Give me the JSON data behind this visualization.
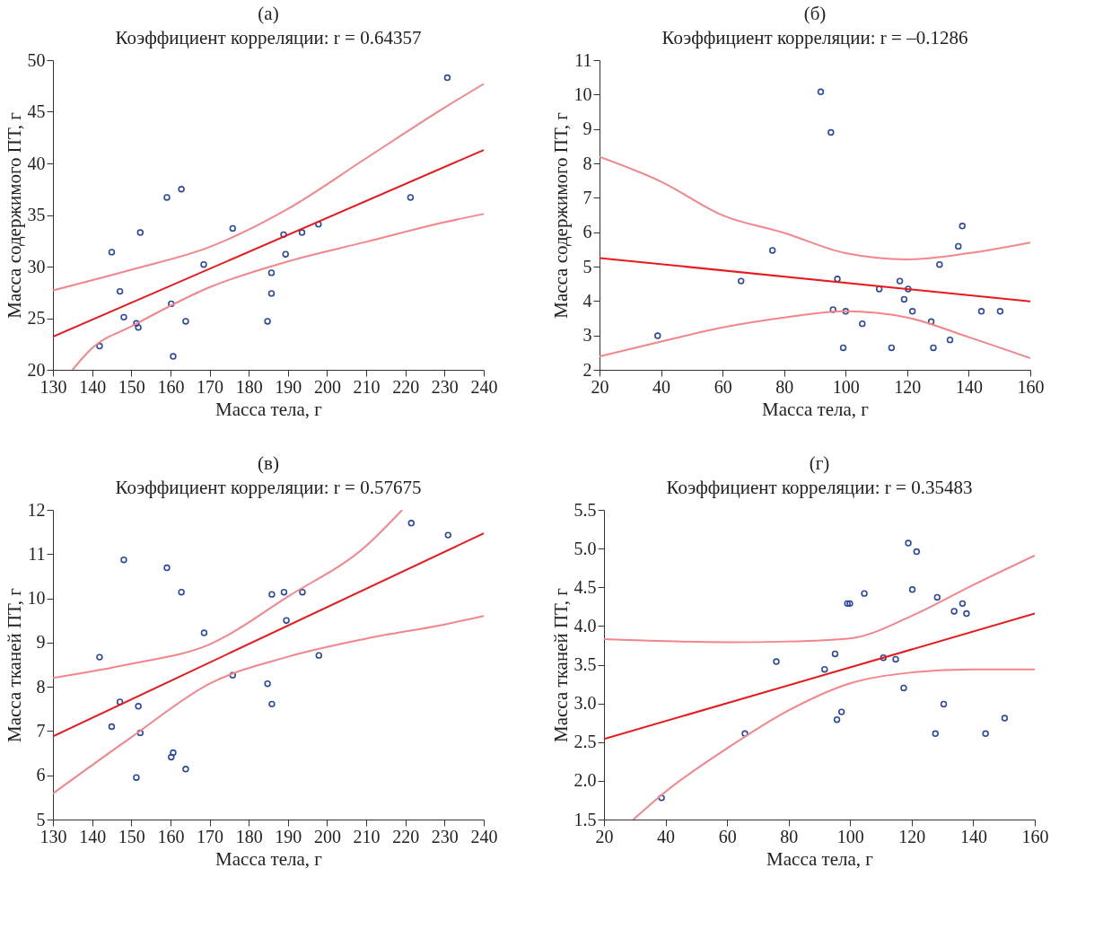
{
  "chart_data": [
    {
      "type": "scatter",
      "title": "(а)",
      "subtitle": "Коэффициент корреляции: r = 0.64357",
      "xlabel": "Масса тела, г",
      "ylabel": "Масса содержимого ПТ, г",
      "xlim": [
        130,
        240
      ],
      "xticks": [
        130,
        140,
        150,
        160,
        170,
        180,
        190,
        200,
        210,
        220,
        230,
        240
      ],
      "ylim": [
        20,
        50
      ],
      "yticks": [
        20,
        25,
        30,
        35,
        40,
        45,
        50
      ],
      "grid": false,
      "series": [
        {
          "type": "scatter",
          "marker": "circle",
          "color": "#2e4a9e",
          "x": [
            141.9,
            145.0,
            147.1,
            148.1,
            151.3,
            151.8,
            152.3,
            159.1,
            160.2,
            160.7,
            162.8,
            163.9,
            168.5,
            175.9,
            184.8,
            185.8,
            185.8,
            188.9,
            189.4,
            193.6,
            197.8,
            221.3,
            230.7
          ],
          "values": [
            22.3,
            31.4,
            27.6,
            25.1,
            24.5,
            24.1,
            33.3,
            36.7,
            26.4,
            21.3,
            37.5,
            24.7,
            30.2,
            33.7,
            24.7,
            29.4,
            27.4,
            33.1,
            31.2,
            33.3,
            34.1,
            36.7,
            48.3
          ]
        },
        {
          "type": "line",
          "color": "#e8191c",
          "x": [
            130,
            240
          ],
          "values": [
            23.2,
            41.3
          ]
        },
        {
          "type": "line",
          "color": "#f4858a",
          "x": [
            130,
            150,
            170,
            190,
            210,
            230,
            240
          ],
          "values": [
            27.7,
            29.7,
            31.9,
            35.6,
            40.5,
            45.4,
            47.7
          ]
        },
        {
          "type": "line",
          "color": "#f4858a",
          "x": [
            135,
            140,
            150,
            170,
            190,
            210,
            230,
            240
          ],
          "values": [
            20.0,
            22.1,
            24.2,
            28.0,
            30.5,
            32.4,
            34.3,
            35.1
          ]
        }
      ]
    },
    {
      "type": "scatter",
      "title": "(б)",
      "subtitle": "Коэффициент корреляции: r = –0.1286",
      "xlabel": "Масса тела, г",
      "ylabel": "Масса содержимого ПТ, г",
      "xlim": [
        20,
        160
      ],
      "xticks": [
        20,
        40,
        60,
        80,
        100,
        120,
        140,
        160
      ],
      "ylim": [
        2,
        11
      ],
      "yticks": [
        2,
        3,
        4,
        5,
        6,
        7,
        8,
        9,
        10,
        11
      ],
      "grid": false,
      "series": [
        {
          "type": "scatter",
          "marker": "circle",
          "color": "#2e4a9e",
          "x": [
            38.9,
            66.0,
            76.2,
            91.9,
            95.2,
            95.9,
            97.3,
            99.2,
            100.0,
            105.4,
            110.9,
            114.9,
            117.6,
            119.0,
            120.3,
            121.7,
            127.8,
            128.5,
            130.5,
            133.9,
            136.6,
            137.9,
            144.1,
            150.2
          ],
          "values": [
            2.99,
            4.58,
            5.47,
            10.08,
            8.9,
            3.75,
            4.64,
            2.64,
            3.7,
            3.34,
            4.35,
            2.64,
            4.58,
            4.05,
            4.35,
            3.7,
            3.4,
            2.64,
            5.06,
            2.87,
            5.59,
            6.18,
            3.7,
            3.7
          ]
        },
        {
          "type": "line",
          "color": "#e8191c",
          "x": [
            20,
            160
          ],
          "values": [
            5.25,
            3.99
          ]
        },
        {
          "type": "line",
          "color": "#f4858a",
          "x": [
            20,
            40,
            60,
            80,
            100,
            120,
            140,
            160
          ],
          "values": [
            8.19,
            7.47,
            6.49,
            5.98,
            5.39,
            5.21,
            5.39,
            5.7
          ]
        },
        {
          "type": "line",
          "color": "#f4858a",
          "x": [
            20,
            40,
            60,
            80,
            100,
            120,
            140,
            160
          ],
          "values": [
            2.39,
            2.82,
            3.23,
            3.52,
            3.7,
            3.52,
            2.95,
            2.34
          ]
        }
      ]
    },
    {
      "type": "scatter",
      "title": "(в)",
      "subtitle": "Коэффициент корреляции: r = 0.57675",
      "xlabel": "Масса тела, г",
      "ylabel": "Масса тканей ПТ, г",
      "xlim": [
        130,
        240
      ],
      "xticks": [
        130,
        140,
        150,
        160,
        170,
        180,
        190,
        200,
        210,
        220,
        230,
        240
      ],
      "ylim": [
        5,
        12
      ],
      "yticks": [
        5,
        6,
        7,
        8,
        9,
        10,
        11,
        12
      ],
      "grid": false,
      "series": [
        {
          "type": "scatter",
          "marker": "circle",
          "color": "#2e4a9e",
          "x": [
            141.9,
            145.0,
            147.1,
            148.1,
            151.3,
            151.8,
            152.3,
            159.1,
            160.2,
            160.7,
            162.8,
            163.9,
            168.6,
            175.9,
            184.8,
            185.9,
            185.9,
            189.0,
            189.6,
            193.7,
            197.9,
            221.5,
            230.9
          ],
          "values": [
            8.67,
            7.1,
            7.66,
            10.87,
            5.95,
            7.56,
            6.96,
            10.69,
            6.41,
            6.51,
            10.14,
            6.14,
            9.22,
            8.26,
            8.07,
            10.09,
            7.61,
            10.14,
            9.5,
            10.14,
            8.71,
            11.7,
            11.43
          ]
        },
        {
          "type": "line",
          "color": "#e8191c",
          "x": [
            130,
            240
          ],
          "values": [
            6.88,
            11.47
          ]
        },
        {
          "type": "line",
          "color": "#f4858a",
          "x": [
            130,
            150,
            170,
            190,
            210,
            219.2
          ],
          "values": [
            8.2,
            8.52,
            8.96,
            10.04,
            11.19,
            12.0
          ]
        },
        {
          "type": "line",
          "color": "#f4858a",
          "x": [
            130,
            150,
            170,
            190,
            210,
            230,
            240
          ],
          "values": [
            5.59,
            6.86,
            8.07,
            8.68,
            9.09,
            9.41,
            9.6
          ]
        }
      ]
    },
    {
      "type": "scatter",
      "title": "(г)",
      "subtitle": "Коэффициент корреляции: r = 0.35483",
      "xlabel": "Масса тела, г",
      "ylabel": "Масса тканей ПТ, г",
      "xlim": [
        20,
        160
      ],
      "xticks": [
        20,
        40,
        60,
        80,
        100,
        120,
        140,
        160
      ],
      "ylim": [
        1.5,
        5.5
      ],
      "yticks": [
        1.5,
        {
          "value": 2,
          "label": "2.0"
        },
        2.5,
        {
          "value": 3,
          "label": "3.0"
        },
        3.5,
        {
          "value": 4,
          "label": "4.0"
        },
        4.5,
        {
          "value": 5,
          "label": "5.0"
        },
        5.5
      ],
      "grid": false,
      "series": [
        {
          "type": "scatter",
          "marker": "circle",
          "color": "#2e4a9e",
          "x": [
            38.7,
            65.8,
            76.0,
            91.7,
            95.1,
            95.7,
            97.2,
            99.1,
            99.9,
            104.6,
            110.8,
            114.8,
            117.4,
            118.9,
            120.2,
            121.6,
            127.7,
            128.3,
            130.4,
            133.8,
            136.5,
            137.8,
            144.0,
            150.2
          ],
          "values": [
            1.78,
            2.61,
            3.54,
            3.44,
            3.64,
            2.79,
            2.89,
            4.29,
            4.29,
            4.42,
            3.59,
            3.57,
            3.2,
            5.07,
            4.47,
            4.96,
            2.61,
            4.37,
            2.99,
            4.19,
            4.29,
            4.16,
            2.61,
            2.81
          ]
        },
        {
          "type": "line",
          "color": "#e8191c",
          "x": [
            20,
            160
          ],
          "values": [
            2.54,
            4.16
          ]
        },
        {
          "type": "line",
          "color": "#f4858a",
          "x": [
            20,
            60,
            80,
            100,
            120,
            140,
            160
          ],
          "values": [
            3.83,
            3.79,
            3.8,
            3.84,
            4.13,
            4.53,
            4.91
          ]
        },
        {
          "type": "line",
          "color": "#f4858a",
          "x": [
            29.5,
            40,
            60,
            80,
            100,
            120,
            140,
            160
          ],
          "values": [
            1.5,
            1.86,
            2.42,
            2.91,
            3.26,
            3.4,
            3.44,
            3.44
          ]
        }
      ]
    }
  ]
}
